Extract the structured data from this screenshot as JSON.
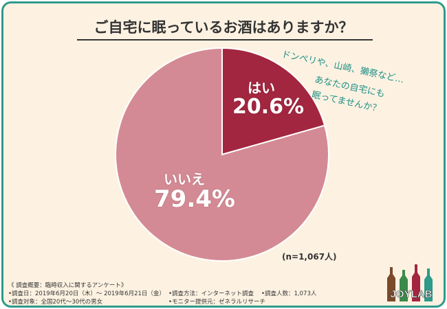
{
  "title": "ご自宅に眠っているお酒はありますか？",
  "annotation": {
    "line1": "ドンペリや、山崎、獺祭など…",
    "line2": "あなたの自宅にも",
    "line3": "眠ってませんか？"
  },
  "chart_data": {
    "type": "pie",
    "title": "ご自宅に眠っているお酒はありますか？",
    "slices": [
      {
        "label": "はい",
        "value": 20.6,
        "display": "20.6%",
        "color": "#a2263f"
      },
      {
        "label": "いいえ",
        "value": 79.4,
        "display": "79.4%",
        "color": "#d48a94"
      }
    ],
    "sample_note": "(n=1,067人)"
  },
  "footer": {
    "heading": "《 調査概要：臨時収入に関するアンケート》",
    "date": "•調査日：2019年6月20日（木）～ 2019年6月21日（金）",
    "method": "•調査方法：インターネット調査",
    "count": "•調査人数：1,073人",
    "target": "•調査対象：全国20代～30代の男女",
    "provider": "•モニター提供元：ゼネラルリサーチ"
  },
  "logo": "JOYLAB",
  "colors": {
    "border": "#2e9a8a",
    "background": "#fdf2e2"
  }
}
